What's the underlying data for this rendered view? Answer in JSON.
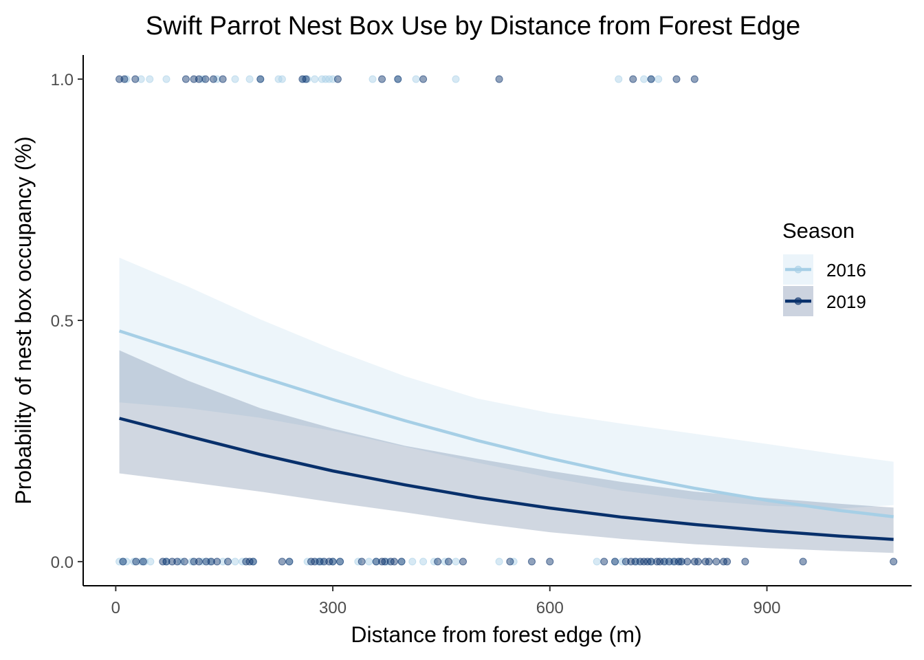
{
  "chart_data": {
    "type": "scatter",
    "title": "Swift Parrot Nest Box Use by Distance from Forest Edge",
    "xlabel": "Distance from forest edge (m)",
    "ylabel": "Probability of nest box occupancy (%)",
    "xlim": [
      -45,
      1100
    ],
    "ylim": [
      -0.05,
      1.05
    ],
    "x_ticks": [
      0,
      300,
      600,
      900
    ],
    "y_ticks": [
      0.0,
      0.5,
      1.0
    ],
    "x_tick_labels": [
      "0",
      "300",
      "600",
      "900"
    ],
    "y_tick_labels": [
      "0.0",
      "0.5",
      "1.0"
    ],
    "grid": false,
    "legend": {
      "title": "Season",
      "position": "right",
      "entries": [
        "2016",
        "2019"
      ]
    },
    "series": [
      {
        "name": "2016",
        "color": "#a6cfe6",
        "ribbon_color": "#a6cfe6",
        "ribbon_opacity": 0.2,
        "curve": {
          "x": [
            5,
            100,
            200,
            300,
            400,
            500,
            600,
            700,
            800,
            900,
            1000,
            1075
          ],
          "y": [
            0.478,
            0.432,
            0.383,
            0.336,
            0.292,
            0.251,
            0.214,
            0.181,
            0.152,
            0.127,
            0.106,
            0.093
          ]
        },
        "ribbon": {
          "x": [
            5,
            100,
            200,
            300,
            400,
            500,
            600,
            700,
            800,
            900,
            1000,
            1075
          ],
          "lower": [
            0.33,
            0.318,
            0.298,
            0.271,
            0.238,
            0.205,
            0.174,
            0.147,
            0.128,
            0.116,
            0.11,
            0.117
          ],
          "upper": [
            0.63,
            0.57,
            0.502,
            0.44,
            0.384,
            0.338,
            0.308,
            0.286,
            0.265,
            0.244,
            0.222,
            0.207
          ]
        },
        "points_at_1": [
          15,
          35,
          47,
          70,
          120,
          140,
          165,
          185,
          200,
          225,
          230,
          260,
          265,
          275,
          285,
          290,
          295,
          300,
          355,
          390,
          415,
          470,
          695,
          730,
          740,
          750
        ],
        "points_at_0": [
          5,
          10,
          15,
          25,
          35,
          40,
          48,
          70,
          90,
          105,
          120,
          130,
          148,
          165,
          175,
          190,
          240,
          265,
          280,
          285,
          300,
          310,
          335,
          350,
          360,
          375,
          395,
          410,
          425,
          440,
          455,
          470,
          530,
          550,
          665,
          690,
          700,
          720,
          740,
          760,
          770,
          780
        ]
      },
      {
        "name": "2019",
        "color": "#08306b",
        "ribbon_color": "#34507f",
        "ribbon_opacity": 0.23,
        "curve": {
          "x": [
            5,
            100,
            200,
            300,
            400,
            500,
            600,
            700,
            800,
            900,
            1000,
            1075
          ],
          "y": [
            0.297,
            0.26,
            0.222,
            0.188,
            0.159,
            0.133,
            0.111,
            0.092,
            0.077,
            0.064,
            0.053,
            0.046
          ]
        },
        "ribbon": {
          "x": [
            5,
            100,
            200,
            300,
            400,
            500,
            600,
            700,
            800,
            900,
            1000,
            1075
          ],
          "lower": [
            0.183,
            0.165,
            0.145,
            0.123,
            0.102,
            0.08,
            0.061,
            0.047,
            0.036,
            0.028,
            0.022,
            0.018
          ],
          "upper": [
            0.438,
            0.375,
            0.318,
            0.276,
            0.24,
            0.213,
            0.188,
            0.165,
            0.145,
            0.132,
            0.12,
            0.112
          ]
        },
        "points_at_1": [
          5,
          12,
          27,
          97,
          108,
          115,
          124,
          135,
          148,
          200,
          258,
          263,
          307,
          368,
          390,
          425,
          530,
          715,
          740,
          775,
          800
        ],
        "points_at_0": [
          10,
          28,
          38,
          65,
          70,
          78,
          85,
          95,
          108,
          115,
          125,
          132,
          140,
          155,
          180,
          185,
          190,
          230,
          240,
          270,
          275,
          282,
          288,
          295,
          300,
          310,
          340,
          360,
          368,
          372,
          380,
          385,
          395,
          445,
          460,
          480,
          545,
          575,
          600,
          675,
          690,
          705,
          712,
          718,
          725,
          730,
          735,
          740,
          748,
          752,
          758,
          765,
          772,
          778,
          782,
          790,
          800,
          805,
          815,
          820,
          830,
          840,
          845,
          870,
          950,
          1075
        ]
      }
    ]
  }
}
